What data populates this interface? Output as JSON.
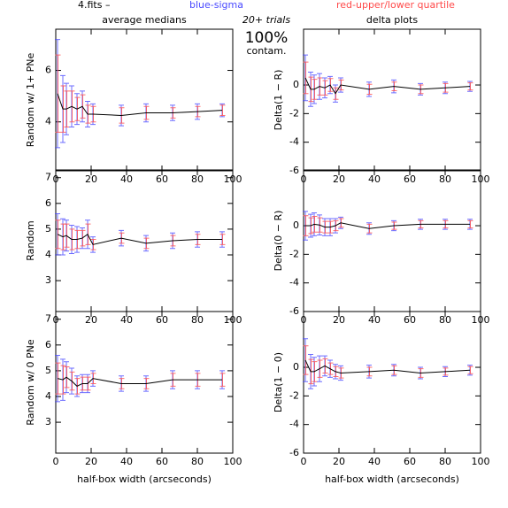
{
  "header": {
    "file": "4.fits  –",
    "sigma": "blue-sigma",
    "quartile": "red-upper/lower quartile",
    "trials": "20+ trials",
    "percent": "100%",
    "contam": "contam."
  },
  "chart_data": [
    {
      "type": "errorbar",
      "title": "average medians",
      "ylabel": "Random w/ 1+ PNe",
      "x": [
        1,
        4,
        6,
        9,
        12,
        15,
        18,
        21,
        37,
        51,
        66,
        80,
        94
      ],
      "values": [
        5.1,
        4.5,
        4.5,
        4.6,
        4.5,
        4.6,
        4.3,
        4.3,
        4.25,
        4.35,
        4.35,
        4.4,
        4.45
      ],
      "sigma": [
        2.1,
        1.3,
        1.0,
        0.8,
        0.6,
        0.6,
        0.5,
        0.4,
        0.4,
        0.35,
        0.3,
        0.3,
        0.25
      ],
      "quartile": [
        1.5,
        0.9,
        0.7,
        0.6,
        0.45,
        0.45,
        0.35,
        0.3,
        0.3,
        0.25,
        0.2,
        0.2,
        0.2
      ],
      "line_color": "#000000",
      "sigma_color": "#4a4aff",
      "quartile_color": "#ff4a4a",
      "xlim": [
        0,
        100
      ],
      "xticks": [
        0,
        20,
        40,
        60,
        80,
        100
      ],
      "ylim": [
        2.1,
        7.6
      ],
      "yticks": [
        4,
        6
      ]
    },
    {
      "type": "errorbar",
      "title": "delta plots",
      "ylabel": "Delta(1 − R)",
      "x": [
        1,
        4,
        6,
        9,
        12,
        15,
        18,
        21,
        37,
        51,
        66,
        80,
        94
      ],
      "values": [
        0.5,
        -0.3,
        -0.3,
        -0.1,
        -0.2,
        0.0,
        -0.6,
        0.0,
        -0.3,
        -0.1,
        -0.3,
        -0.2,
        -0.1
      ],
      "sigma": [
        1.6,
        1.2,
        1.0,
        0.9,
        0.7,
        0.6,
        0.6,
        0.5,
        0.5,
        0.45,
        0.4,
        0.4,
        0.35
      ],
      "quartile": [
        1.1,
        0.85,
        0.7,
        0.6,
        0.5,
        0.45,
        0.4,
        0.35,
        0.35,
        0.3,
        0.3,
        0.3,
        0.25
      ],
      "line_color": "#000000",
      "sigma_color": "#4a4aff",
      "quartile_color": "#ff4a4a",
      "xlim": [
        0,
        100
      ],
      "xticks": [
        0,
        20,
        40,
        60,
        80,
        100
      ],
      "ylim": [
        -6,
        3.9
      ],
      "yticks": [
        -6,
        -4,
        -2,
        0
      ]
    },
    {
      "type": "errorbar",
      "ylabel": "Random",
      "x": [
        1,
        4,
        6,
        9,
        12,
        15,
        18,
        21,
        37,
        51,
        66,
        80,
        94
      ],
      "values": [
        4.8,
        4.7,
        4.75,
        4.6,
        4.6,
        4.65,
        4.8,
        4.4,
        4.65,
        4.45,
        4.55,
        4.6,
        4.6
      ],
      "sigma": [
        0.8,
        0.7,
        0.6,
        0.55,
        0.5,
        0.4,
        0.55,
        0.3,
        0.3,
        0.3,
        0.3,
        0.3,
        0.3
      ],
      "quartile": [
        0.55,
        0.5,
        0.45,
        0.4,
        0.35,
        0.3,
        0.4,
        0.2,
        0.2,
        0.2,
        0.2,
        0.2,
        0.2
      ],
      "line_color": "#000000",
      "sigma_color": "#4a4aff",
      "quartile_color": "#ff4a4a",
      "xlim": [
        0,
        100
      ],
      "xticks": [
        0,
        20,
        40,
        60,
        80,
        100
      ],
      "ylim": [
        1.8,
        7.3
      ],
      "yticks": [
        3,
        4,
        5,
        6,
        7
      ]
    },
    {
      "type": "errorbar",
      "ylabel": "Delta(0 − R)",
      "x": [
        1,
        4,
        6,
        9,
        12,
        15,
        18,
        21,
        37,
        51,
        66,
        80,
        94
      ],
      "values": [
        0.0,
        0.0,
        0.1,
        0.05,
        -0.1,
        -0.1,
        0.0,
        0.2,
        -0.2,
        0.0,
        0.1,
        0.1,
        0.1
      ],
      "sigma": [
        1.0,
        0.8,
        0.8,
        0.7,
        0.6,
        0.6,
        0.5,
        0.4,
        0.4,
        0.35,
        0.35,
        0.35,
        0.35
      ],
      "quartile": [
        0.7,
        0.55,
        0.55,
        0.5,
        0.4,
        0.4,
        0.35,
        0.3,
        0.3,
        0.25,
        0.25,
        0.25,
        0.25
      ],
      "line_color": "#000000",
      "sigma_color": "#4a4aff",
      "quartile_color": "#ff4a4a",
      "xlim": [
        0,
        100
      ],
      "xticks": [
        0,
        20,
        40,
        60,
        80,
        100
      ],
      "ylim": [
        -6,
        3.9
      ],
      "yticks": [
        -6,
        -4,
        -2,
        0
      ]
    },
    {
      "type": "errorbar",
      "ylabel": "Random w/ 0 PNe",
      "xlabel": "half-box width (arcseconds)",
      "x": [
        1,
        4,
        6,
        9,
        12,
        15,
        18,
        21,
        37,
        51,
        66,
        80,
        94
      ],
      "values": [
        4.7,
        4.65,
        4.75,
        4.6,
        4.4,
        4.5,
        4.5,
        4.7,
        4.5,
        4.5,
        4.65,
        4.65,
        4.65
      ],
      "sigma": [
        0.9,
        0.8,
        0.6,
        0.5,
        0.4,
        0.35,
        0.35,
        0.3,
        0.3,
        0.3,
        0.35,
        0.35,
        0.35
      ],
      "quartile": [
        0.6,
        0.55,
        0.4,
        0.35,
        0.3,
        0.25,
        0.25,
        0.2,
        0.2,
        0.2,
        0.25,
        0.25,
        0.25
      ],
      "line_color": "#000000",
      "sigma_color": "#4a4aff",
      "quartile_color": "#ff4a4a",
      "xlim": [
        0,
        100
      ],
      "xticks": [
        0,
        20,
        40,
        60,
        80,
        100
      ],
      "ylim": [
        1.8,
        7.3
      ],
      "yticks": [
        3,
        4,
        5,
        6,
        7
      ]
    },
    {
      "type": "errorbar",
      "ylabel": "Delta(1 − 0)",
      "xlabel": "half-box width (arcseconds)",
      "x": [
        1,
        4,
        6,
        9,
        12,
        15,
        18,
        21,
        37,
        51,
        66,
        80,
        94
      ],
      "values": [
        0.5,
        -0.3,
        -0.3,
        -0.1,
        0.1,
        -0.1,
        -0.3,
        -0.4,
        -0.3,
        -0.2,
        -0.4,
        -0.3,
        -0.2
      ],
      "sigma": [
        1.5,
        1.2,
        1.0,
        0.9,
        0.7,
        0.6,
        0.5,
        0.5,
        0.45,
        0.4,
        0.4,
        0.35,
        0.35
      ],
      "quartile": [
        1.0,
        0.85,
        0.7,
        0.6,
        0.5,
        0.4,
        0.35,
        0.35,
        0.3,
        0.3,
        0.3,
        0.25,
        0.25
      ],
      "line_color": "#000000",
      "sigma_color": "#4a4aff",
      "quartile_color": "#ff4a4a",
      "xlim": [
        0,
        100
      ],
      "xticks": [
        0,
        20,
        40,
        60,
        80,
        100
      ],
      "ylim": [
        -6,
        3.9
      ],
      "yticks": [
        -6,
        -4,
        -2,
        0
      ]
    }
  ]
}
